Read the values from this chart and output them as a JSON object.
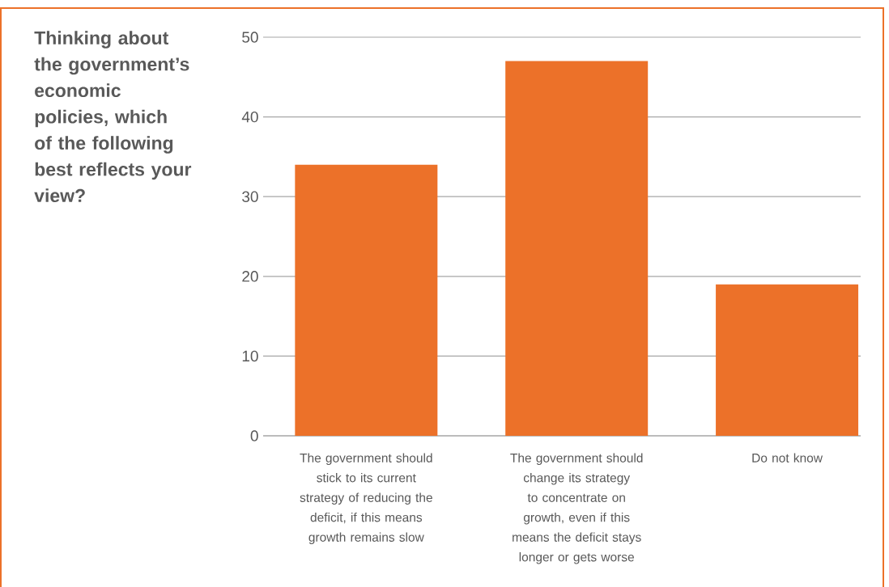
{
  "chart_data": {
    "type": "bar",
    "title": "Thinking about the government’s economic policies, which of the following best reflects your view?",
    "categories": [
      "The government should stick to its current strategy of reducing the deficit, if this means growth remains slow",
      "The government should change its strategy to concentrate on growth, even if this means the deficit stays longer or gets worse",
      "Do not know"
    ],
    "values": [
      34,
      47,
      19
    ],
    "color": "#ec7129",
    "ylim": [
      0,
      50
    ],
    "yticks": [
      0,
      10,
      20,
      30,
      40,
      50
    ],
    "grid": "y"
  }
}
